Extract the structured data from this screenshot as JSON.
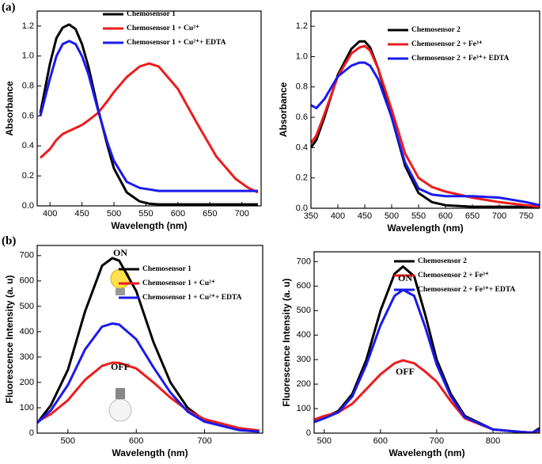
{
  "panel_labels": [
    "(a)",
    "(b)"
  ],
  "chart_data": [
    {
      "type": "line",
      "x_label": "Wavelength (nm)",
      "y_label": "Absorbance",
      "legend": "upper right",
      "xlim": [
        380,
        730
      ],
      "xticks": [
        400,
        450,
        500,
        550,
        600,
        650,
        700
      ],
      "ylim": [
        0,
        1.3
      ],
      "yticks": [
        {
          "value": 0,
          "label": "0.0"
        },
        {
          "value": 0.2,
          "label": "0.2"
        },
        {
          "value": 0.4,
          "label": "0.4"
        },
        {
          "value": 0.6,
          "label": "0.6"
        },
        {
          "value": 0.8,
          "label": "0.8"
        },
        {
          "value": 1,
          "label": "1.0"
        },
        {
          "value": 1.2,
          "label": "1.2"
        }
      ],
      "x": [
        385,
        400,
        410,
        420,
        430,
        440,
        450,
        460,
        475,
        490,
        500,
        520,
        540,
        555,
        570,
        600,
        630,
        660,
        690,
        710,
        725
      ],
      "series": [
        {
          "name": "Chemosensor 1",
          "color": "#000000",
          "values": [
            0.62,
            0.95,
            1.12,
            1.19,
            1.21,
            1.18,
            1.08,
            0.93,
            0.65,
            0.4,
            0.25,
            0.09,
            0.03,
            0.015,
            0.01,
            0.01,
            0.01,
            0.01,
            0.01,
            0.01,
            0.01
          ]
        },
        {
          "name": "Chemosensor 1 + Cu²⁺",
          "color": "#ee1c1c",
          "values": [
            0.32,
            0.38,
            0.44,
            0.48,
            0.5,
            0.52,
            0.54,
            0.57,
            0.62,
            0.7,
            0.76,
            0.86,
            0.93,
            0.95,
            0.93,
            0.78,
            0.55,
            0.33,
            0.18,
            0.12,
            0.09
          ]
        },
        {
          "name": "Chemosensor 1 + Cu²⁺+ EDTA",
          "color": "#1a1aee",
          "values": [
            0.6,
            0.85,
            1.0,
            1.08,
            1.1,
            1.08,
            1.0,
            0.88,
            0.64,
            0.42,
            0.3,
            0.16,
            0.12,
            0.11,
            0.1,
            0.1,
            0.1,
            0.1,
            0.1,
            0.1,
            0.1
          ]
        }
      ]
    },
    {
      "type": "line",
      "x_label": "Wavelength (nm)",
      "y_label": "Absorbance",
      "legend": "upper right",
      "xlim": [
        350,
        775
      ],
      "xticks": [
        350,
        400,
        450,
        500,
        550,
        600,
        650,
        700,
        750
      ],
      "ylim": [
        0,
        1.3
      ],
      "yticks": [
        {
          "value": 0,
          "label": "0.0"
        },
        {
          "value": 0.2,
          "label": "0.2"
        },
        {
          "value": 0.4,
          "label": "0.4"
        },
        {
          "value": 0.6,
          "label": "0.6"
        },
        {
          "value": 0.8,
          "label": "0.8"
        },
        {
          "value": 1,
          "label": "1.0"
        },
        {
          "value": 1.2,
          "label": "1.2"
        }
      ],
      "x": [
        350,
        360,
        375,
        400,
        425,
        440,
        450,
        460,
        475,
        500,
        525,
        550,
        575,
        600,
        650,
        700,
        750,
        775
      ],
      "series": [
        {
          "name": "Chemosensor 2",
          "color": "#000000",
          "values": [
            0.4,
            0.45,
            0.6,
            0.88,
            1.05,
            1.1,
            1.1,
            1.06,
            0.92,
            0.6,
            0.28,
            0.1,
            0.04,
            0.02,
            0.01,
            0.01,
            0.01,
            0.01
          ]
        },
        {
          "name": "Chemosensor 2 + Fe³⁺",
          "color": "#ee1c1c",
          "values": [
            0.43,
            0.48,
            0.62,
            0.87,
            1.02,
            1.06,
            1.07,
            1.04,
            0.92,
            0.65,
            0.36,
            0.2,
            0.14,
            0.11,
            0.07,
            0.04,
            0.02,
            0.01
          ]
        },
        {
          "name": "Chemosensor 2 + Fe³⁺+ EDTA",
          "color": "#1a1aee",
          "values": [
            0.68,
            0.66,
            0.72,
            0.87,
            0.94,
            0.96,
            0.96,
            0.94,
            0.85,
            0.6,
            0.3,
            0.13,
            0.09,
            0.08,
            0.08,
            0.07,
            0.04,
            0.02
          ]
        }
      ]
    },
    {
      "type": "line",
      "x_label": "Wavelength  (nm)",
      "y_label": "Fluorescence Intensity  (a. u)",
      "legend": "upper right",
      "annotations": [
        "ON",
        "OFF"
      ],
      "xlim": [
        455,
        785
      ],
      "xticks": [
        500,
        600,
        700
      ],
      "ylim": [
        0,
        740
      ],
      "yticks": [
        0,
        100,
        200,
        300,
        400,
        500,
        600,
        700
      ],
      "x": [
        455,
        475,
        500,
        525,
        550,
        565,
        575,
        600,
        625,
        650,
        675,
        700,
        750,
        780
      ],
      "series": [
        {
          "name": "Chemosensor 1",
          "color": "#000000",
          "values": [
            40,
            110,
            250,
            480,
            660,
            690,
            680,
            560,
            360,
            200,
            100,
            50,
            15,
            8
          ]
        },
        {
          "name": "Chemosensor 1 + Cu²⁺",
          "color": "#ee1c1c",
          "values": [
            45,
            75,
            130,
            210,
            265,
            278,
            277,
            255,
            200,
            140,
            90,
            55,
            20,
            10
          ]
        },
        {
          "name": "Chemosensor 1 + Cu²⁺+ EDTA",
          "color": "#1a1aee",
          "values": [
            40,
            90,
            190,
            330,
            420,
            432,
            428,
            370,
            260,
            160,
            85,
            45,
            12,
            6
          ]
        }
      ]
    },
    {
      "type": "line",
      "x_label": "Wavelength  (nm)",
      "y_label": "Fluorescence Intensity  (a. u)",
      "legend": "upper right",
      "annotations": [
        "ON",
        "OFF"
      ],
      "xlim": [
        482,
        883
      ],
      "xticks": [
        500,
        600,
        700,
        800
      ],
      "ylim": [
        0,
        740
      ],
      "yticks": [
        0,
        100,
        200,
        300,
        400,
        500,
        600,
        700
      ],
      "x": [
        482,
        500,
        525,
        550,
        575,
        600,
        625,
        640,
        660,
        680,
        700,
        725,
        750,
        800,
        850,
        870,
        883
      ],
      "series": [
        {
          "name": "Chemosensor 2",
          "color": "#000000",
          "values": [
            50,
            65,
            90,
            160,
            300,
            500,
            650,
            680,
            640,
            480,
            300,
            160,
            70,
            15,
            5,
            2,
            20
          ]
        },
        {
          "name": "Chemosensor 2 + Fe³⁺",
          "color": "#ee1c1c",
          "values": [
            55,
            70,
            85,
            120,
            180,
            240,
            285,
            297,
            285,
            250,
            210,
            130,
            60,
            15,
            5,
            2,
            5
          ]
        },
        {
          "name": "Chemosensor 2 + Fe³⁺+ EDTA",
          "color": "#1a1aee",
          "values": [
            45,
            60,
            85,
            150,
            280,
            440,
            560,
            585,
            560,
            430,
            280,
            150,
            65,
            15,
            5,
            2,
            15
          ]
        }
      ]
    }
  ]
}
